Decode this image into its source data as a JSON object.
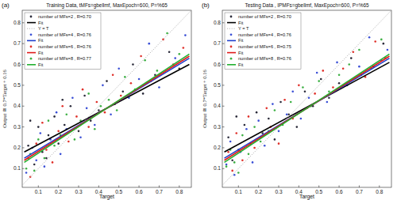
{
  "chart_data": [
    {
      "type": "scatter",
      "annotations": [
        "(a)"
      ],
      "title": "Training Data, tMFs=gbellmf, MaxEpoch=600, P=%65",
      "x_label": "Target",
      "y_label": "Output ≅ 0.7*Target + 0.16",
      "xlim": [
        0.02,
        0.86
      ],
      "ylim": [
        0.01,
        0.86
      ],
      "xticks": [
        0.1,
        0.2,
        0.3,
        0.4,
        0.5,
        0.6,
        0.7,
        0.8
      ],
      "yticks": [
        0.1,
        0.2,
        0.3,
        0.4,
        0.5,
        0.6,
        0.7,
        0.8
      ],
      "grid": false,
      "legend": "upper left",
      "series": [
        {
          "name": "number of MFs=2 , R=0.70",
          "type": "scatter",
          "marker": "dot",
          "color": "#2b2b3a",
          "x": [
            0.05,
            0.08,
            0.1,
            0.12,
            0.15,
            0.18,
            0.2,
            0.23,
            0.26,
            0.3,
            0.33,
            0.36,
            0.4,
            0.44,
            0.48,
            0.52,
            0.57,
            0.62,
            0.68,
            0.75,
            0.8,
            0.06,
            0.14,
            0.22
          ],
          "values": [
            0.21,
            0.12,
            0.3,
            0.18,
            0.26,
            0.35,
            0.22,
            0.31,
            0.4,
            0.28,
            0.45,
            0.33,
            0.38,
            0.52,
            0.41,
            0.47,
            0.6,
            0.46,
            0.55,
            0.66,
            0.58,
            0.33,
            0.15,
            0.43
          ]
        },
        {
          "name": "Fit",
          "type": "line",
          "line_style": "solid",
          "color": "#000000",
          "x": [
            0.03,
            0.85
          ],
          "values": [
            0.18,
            0.6
          ]
        },
        {
          "name": "Y = T",
          "type": "line",
          "line_style": "dotted",
          "color": "#aaaaaa",
          "x": [
            0.02,
            0.86
          ],
          "values": [
            0.02,
            0.86
          ]
        },
        {
          "name": "number of MFs=4 , R=0.76",
          "type": "scatter",
          "marker": "dot",
          "color": "#3a4fd6",
          "x": [
            0.04,
            0.07,
            0.09,
            0.11,
            0.13,
            0.16,
            0.19,
            0.21,
            0.24,
            0.27,
            0.31,
            0.34,
            0.38,
            0.42,
            0.46,
            0.5,
            0.55,
            0.6,
            0.65,
            0.7,
            0.78,
            0.83
          ],
          "values": [
            0.08,
            0.2,
            0.14,
            0.27,
            0.11,
            0.24,
            0.37,
            0.17,
            0.29,
            0.44,
            0.25,
            0.39,
            0.31,
            0.5,
            0.36,
            0.58,
            0.44,
            0.53,
            0.7,
            0.49,
            0.63,
            0.74
          ]
        },
        {
          "name": "Fit",
          "type": "line",
          "line_style": "solid",
          "color": "#1f3fcc",
          "x": [
            0.03,
            0.85
          ],
          "values": [
            0.15,
            0.63
          ]
        },
        {
          "name": "number of MFs=6 , R=0.76",
          "type": "scatter",
          "marker": "dot",
          "color": "#e0302a",
          "x": [
            0.05,
            0.06,
            0.09,
            0.12,
            0.14,
            0.17,
            0.2,
            0.22,
            0.25,
            0.29,
            0.32,
            0.35,
            0.39,
            0.43,
            0.47,
            0.51,
            0.56,
            0.61,
            0.66,
            0.72,
            0.77,
            0.82
          ],
          "values": [
            0.15,
            0.06,
            0.22,
            0.32,
            0.19,
            0.13,
            0.28,
            0.4,
            0.23,
            0.35,
            0.48,
            0.3,
            0.42,
            0.37,
            0.55,
            0.45,
            0.51,
            0.64,
            0.52,
            0.72,
            0.6,
            0.68
          ]
        },
        {
          "name": "Fit",
          "type": "line",
          "line_style": "solid",
          "color": "#e01a1a",
          "x": [
            0.03,
            0.85
          ],
          "values": [
            0.14,
            0.64
          ]
        },
        {
          "name": "number of MFs=8 , R=0.77",
          "type": "scatter",
          "marker": "dot",
          "color": "#3cb043",
          "x": [
            0.04,
            0.06,
            0.08,
            0.1,
            0.13,
            0.15,
            0.18,
            0.21,
            0.24,
            0.28,
            0.31,
            0.35,
            0.38,
            0.41,
            0.45,
            0.49,
            0.53,
            0.58,
            0.63,
            0.69,
            0.74,
            0.8
          ],
          "values": [
            0.1,
            0.17,
            0.09,
            0.24,
            0.15,
            0.33,
            0.21,
            0.26,
            0.36,
            0.24,
            0.33,
            0.46,
            0.29,
            0.4,
            0.43,
            0.38,
            0.54,
            0.48,
            0.62,
            0.57,
            0.75,
            0.65
          ]
        },
        {
          "name": "Fit",
          "type": "line",
          "line_style": "solid",
          "color": "#22b030",
          "x": [
            0.03,
            0.85
          ],
          "values": [
            0.13,
            0.65
          ]
        }
      ]
    },
    {
      "type": "scatter",
      "annotations": [
        "(b)"
      ],
      "title": "Testing Data , IPMFs=gbellmf, MaxEpoch=600, P=%65",
      "x_label": "Target",
      "y_label": "Output ≅ 0.7*Target + 0.16",
      "xlim": [
        0.02,
        0.86
      ],
      "ylim": [
        0.01,
        0.86
      ],
      "xticks": [
        0.1,
        0.2,
        0.3,
        0.4,
        0.5,
        0.6,
        0.7,
        0.8
      ],
      "yticks": [
        0.1,
        0.2,
        0.3,
        0.4,
        0.5,
        0.6,
        0.7,
        0.8
      ],
      "grid": false,
      "legend": "upper left",
      "series": [
        {
          "name": "number of MFs=2 , R=0.70",
          "type": "scatter",
          "marker": "dot",
          "color": "#2b2b3a",
          "x": [
            0.05,
            0.07,
            0.1,
            0.13,
            0.16,
            0.19,
            0.22,
            0.25,
            0.28,
            0.31,
            0.35,
            0.39,
            0.43,
            0.47,
            0.51,
            0.55,
            0.6,
            0.66,
            0.71,
            0.77,
            0.82,
            0.09
          ],
          "values": [
            0.25,
            0.14,
            0.19,
            0.31,
            0.22,
            0.37,
            0.27,
            0.34,
            0.24,
            0.42,
            0.36,
            0.3,
            0.47,
            0.4,
            0.53,
            0.44,
            0.51,
            0.63,
            0.55,
            0.59,
            0.7,
            0.35
          ]
        },
        {
          "name": "Fit",
          "type": "line",
          "line_style": "solid",
          "color": "#000000",
          "x": [
            0.03,
            0.85
          ],
          "values": [
            0.18,
            0.61
          ]
        },
        {
          "name": "Y = T",
          "type": "line",
          "line_style": "dotted",
          "color": "#aaaaaa",
          "x": [
            0.02,
            0.86
          ],
          "values": [
            0.02,
            0.86
          ]
        },
        {
          "name": "number of MFs=4 , R=0.76",
          "type": "scatter",
          "marker": "dot",
          "color": "#3a4fd6",
          "x": [
            0.04,
            0.06,
            0.08,
            0.11,
            0.14,
            0.17,
            0.2,
            0.23,
            0.27,
            0.3,
            0.34,
            0.37,
            0.41,
            0.45,
            0.49,
            0.54,
            0.59,
            0.64,
            0.7,
            0.75,
            0.81,
            0.84
          ],
          "values": [
            0.12,
            0.23,
            0.07,
            0.18,
            0.29,
            0.13,
            0.33,
            0.21,
            0.41,
            0.28,
            0.36,
            0.47,
            0.34,
            0.44,
            0.56,
            0.42,
            0.61,
            0.5,
            0.59,
            0.73,
            0.62,
            0.67
          ]
        },
        {
          "name": "Fit",
          "type": "line",
          "line_style": "solid",
          "color": "#1f3fcc",
          "x": [
            0.03,
            0.85
          ],
          "values": [
            0.15,
            0.63
          ]
        },
        {
          "name": "number of MFs=6 , R=0.75",
          "type": "scatter",
          "marker": "dot",
          "color": "#e0302a",
          "x": [
            0.05,
            0.07,
            0.09,
            0.12,
            0.15,
            0.18,
            0.21,
            0.24,
            0.26,
            0.3,
            0.33,
            0.37,
            0.4,
            0.44,
            0.48,
            0.52,
            0.57,
            0.62,
            0.67,
            0.73,
            0.78,
            0.83
          ],
          "values": [
            0.18,
            0.09,
            0.27,
            0.14,
            0.35,
            0.2,
            0.25,
            0.39,
            0.3,
            0.22,
            0.43,
            0.34,
            0.5,
            0.39,
            0.46,
            0.57,
            0.49,
            0.58,
            0.66,
            0.54,
            0.71,
            0.63
          ]
        },
        {
          "name": "Fit",
          "type": "line",
          "line_style": "solid",
          "color": "#e01a1a",
          "x": [
            0.03,
            0.85
          ],
          "values": [
            0.14,
            0.64
          ]
        },
        {
          "name": "number of MFs=8 , R=0.76",
          "type": "scatter",
          "marker": "dot",
          "color": "#3cb043",
          "x": [
            0.04,
            0.06,
            0.08,
            0.1,
            0.12,
            0.15,
            0.18,
            0.21,
            0.25,
            0.28,
            0.32,
            0.36,
            0.39,
            0.42,
            0.46,
            0.5,
            0.55,
            0.6,
            0.65,
            0.7,
            0.76,
            0.81
          ],
          "values": [
            0.11,
            0.19,
            0.13,
            0.08,
            0.26,
            0.17,
            0.3,
            0.23,
            0.28,
            0.38,
            0.31,
            0.42,
            0.36,
            0.49,
            0.4,
            0.52,
            0.47,
            0.55,
            0.6,
            0.67,
            0.58,
            0.72
          ]
        },
        {
          "name": "Fit",
          "type": "line",
          "line_style": "solid",
          "color": "#22b030",
          "x": [
            0.03,
            0.85
          ],
          "values": [
            0.13,
            0.65
          ]
        }
      ]
    }
  ]
}
